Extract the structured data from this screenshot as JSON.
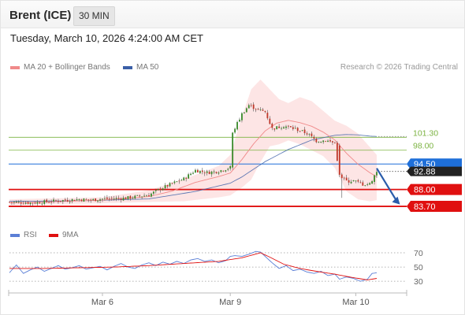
{
  "header": {
    "instrument": "Brent (ICE)",
    "timeframe": "30 MIN"
  },
  "datetime": "Tuesday, March 10, 2026 4:24:00 AM CET",
  "legend": {
    "ma20_bb": "MA 20 + Bollinger Bands",
    "ma50": "MA 50",
    "rsi": "RSI",
    "rsi_ma": "9MA"
  },
  "research": "Research © 2026 Trading Central",
  "colors": {
    "ma20": "#f08a8a",
    "ma50": "#3b5fa7",
    "bollinger_fill": "#fde0e0",
    "candle_up": "#3a8a2a",
    "candle_down": "#c0392b",
    "resistance": "#7cb342",
    "support": "#e01010",
    "current_price": "#1e6fd9",
    "rsi_line": "#5b7fd6",
    "rsi_ma": "#e01010",
    "arrow": "#2a5caa"
  },
  "chart_data": {
    "type": "candlestick",
    "y_range": [
      79.5,
      117
    ],
    "x_axis_labels": [
      {
        "label": "Mar 6",
        "index": 40
      },
      {
        "label": "Mar 9",
        "index": 95
      },
      {
        "label": "Mar 10",
        "index": 149
      }
    ],
    "close_anchors": [
      [
        0,
        84.8
      ],
      [
        10,
        84.6
      ],
      [
        20,
        85.1
      ],
      [
        30,
        85.5
      ],
      [
        35,
        85.3
      ],
      [
        40,
        85.6
      ],
      [
        50,
        85.8
      ],
      [
        60,
        86.6
      ],
      [
        65,
        88.2
      ],
      [
        70,
        89.5
      ],
      [
        75,
        90.7
      ],
      [
        80,
        92.9
      ],
      [
        85,
        92.3
      ],
      [
        88,
        92.5
      ],
      [
        90,
        92.7
      ],
      [
        95,
        93.6
      ],
      [
        96,
        102.5
      ],
      [
        100,
        107.2
      ],
      [
        103,
        109.5
      ],
      [
        107,
        108.3
      ],
      [
        110,
        107.8
      ],
      [
        113,
        103.5
      ],
      [
        118,
        104.2
      ],
      [
        123,
        103.4
      ],
      [
        128,
        102.3
      ],
      [
        132,
        100.4
      ],
      [
        136,
        100.5
      ],
      [
        140,
        99.8
      ],
      [
        142,
        91.5
      ],
      [
        145,
        90.1
      ],
      [
        148,
        90.2
      ],
      [
        152,
        89.3
      ],
      [
        155,
        89.4
      ],
      [
        158,
        92.6
      ]
    ],
    "ma20_anchors": [
      [
        0,
        84.6
      ],
      [
        20,
        84.9
      ],
      [
        40,
        85.3
      ],
      [
        60,
        86.2
      ],
      [
        70,
        87.6
      ],
      [
        80,
        89.8
      ],
      [
        90,
        91.3
      ],
      [
        95,
        92.2
      ],
      [
        100,
        95.6
      ],
      [
        105,
        99.6
      ],
      [
        110,
        102.9
      ],
      [
        115,
        104.9
      ],
      [
        120,
        105.6
      ],
      [
        125,
        105.0
      ],
      [
        130,
        104.1
      ],
      [
        135,
        102.6
      ],
      [
        140,
        100.6
      ],
      [
        145,
        97.2
      ],
      [
        150,
        94.4
      ],
      [
        155,
        92.3
      ],
      [
        158,
        91.2
      ]
    ],
    "ma50_anchors": [
      [
        0,
        85.0
      ],
      [
        30,
        85.1
      ],
      [
        60,
        85.6
      ],
      [
        80,
        87.5
      ],
      [
        95,
        89.6
      ],
      [
        100,
        91.2
      ],
      [
        110,
        95.1
      ],
      [
        120,
        98.2
      ],
      [
        130,
        100.6
      ],
      [
        140,
        101.8
      ],
      [
        145,
        102.0
      ],
      [
        150,
        101.9
      ],
      [
        155,
        101.6
      ],
      [
        158,
        101.5
      ]
    ],
    "bb_upper_anchors": [
      [
        0,
        85.5
      ],
      [
        40,
        86.0
      ],
      [
        60,
        87.8
      ],
      [
        75,
        90.6
      ],
      [
        90,
        94.0
      ],
      [
        95,
        96.8
      ],
      [
        100,
        106.5
      ],
      [
        104,
        113.5
      ],
      [
        108,
        116.0
      ],
      [
        112,
        113.5
      ],
      [
        116,
        111.0
      ],
      [
        120,
        110.0
      ],
      [
        125,
        111.5
      ],
      [
        130,
        110.5
      ],
      [
        135,
        108.0
      ],
      [
        140,
        105.5
      ],
      [
        145,
        104.2
      ],
      [
        150,
        102.2
      ],
      [
        155,
        98.8
      ],
      [
        158,
        96.8
      ]
    ],
    "bb_lower_anchors": [
      [
        0,
        84.0
      ],
      [
        40,
        84.5
      ],
      [
        60,
        84.8
      ],
      [
        75,
        85.0
      ],
      [
        90,
        86.0
      ],
      [
        95,
        86.5
      ],
      [
        100,
        88.5
      ],
      [
        104,
        90.5
      ],
      [
        108,
        95.0
      ],
      [
        112,
        99.0
      ],
      [
        116,
        99.5
      ],
      [
        120,
        100.5
      ],
      [
        125,
        99.5
      ],
      [
        130,
        98.0
      ],
      [
        135,
        96.5
      ],
      [
        140,
        93.5
      ],
      [
        145,
        87.5
      ],
      [
        150,
        85.5
      ],
      [
        155,
        85.0
      ],
      [
        158,
        85.3
      ]
    ],
    "candle_count": 159,
    "levels": [
      {
        "value": 101.3,
        "label": "101.30",
        "type": "resistance"
      },
      {
        "value": 98.0,
        "label": "98.00",
        "type": "resistance"
      },
      {
        "value": 94.5,
        "label": "94.50",
        "type": "pivot"
      },
      {
        "value": 88.0,
        "label": "88.00",
        "type": "support"
      },
      {
        "value": 83.7,
        "label": "83.70",
        "type": "support"
      }
    ],
    "current_price_label": "92.88",
    "forecast_arrow": {
      "from_index": 158,
      "from_value": 93.4,
      "to_index": 168,
      "to_value": 84.2
    },
    "rsi": {
      "y_range": [
        18,
        80
      ],
      "ticks": [
        {
          "value": 70,
          "label": "70"
        },
        {
          "value": 50,
          "label": "50"
        },
        {
          "value": 30,
          "label": "30"
        }
      ],
      "rsi_anchors": [
        [
          0,
          42
        ],
        [
          3,
          53
        ],
        [
          6,
          41
        ],
        [
          9,
          46
        ],
        [
          12,
          50
        ],
        [
          15,
          44
        ],
        [
          18,
          48
        ],
        [
          21,
          52
        ],
        [
          24,
          47
        ],
        [
          27,
          49
        ],
        [
          30,
          52
        ],
        [
          33,
          47
        ],
        [
          36,
          49
        ],
        [
          39,
          51
        ],
        [
          42,
          46
        ],
        [
          45,
          51
        ],
        [
          48,
          55
        ],
        [
          51,
          50
        ],
        [
          54,
          48
        ],
        [
          57,
          53
        ],
        [
          60,
          56
        ],
        [
          63,
          52
        ],
        [
          66,
          57
        ],
        [
          69,
          54
        ],
        [
          72,
          58
        ],
        [
          75,
          55
        ],
        [
          78,
          60
        ],
        [
          81,
          62
        ],
        [
          84,
          58
        ],
        [
          87,
          60
        ],
        [
          90,
          56
        ],
        [
          93,
          59
        ],
        [
          95,
          65
        ],
        [
          97,
          66
        ],
        [
          100,
          65
        ],
        [
          103,
          68
        ],
        [
          106,
          72
        ],
        [
          108,
          71
        ],
        [
          110,
          65
        ],
        [
          113,
          56
        ],
        [
          116,
          48
        ],
        [
          119,
          52
        ],
        [
          122,
          45
        ],
        [
          125,
          47
        ],
        [
          128,
          43
        ],
        [
          131,
          41
        ],
        [
          134,
          44
        ],
        [
          137,
          38
        ],
        [
          140,
          40
        ],
        [
          142,
          33
        ],
        [
          145,
          36
        ],
        [
          148,
          34
        ],
        [
          151,
          30
        ],
        [
          154,
          33
        ],
        [
          156,
          41
        ],
        [
          158,
          42
        ]
      ],
      "ma_anchors": [
        [
          0,
          48
        ],
        [
          15,
          48
        ],
        [
          30,
          49
        ],
        [
          45,
          50
        ],
        [
          60,
          52
        ],
        [
          75,
          55
        ],
        [
          90,
          58
        ],
        [
          100,
          63
        ],
        [
          108,
          70
        ],
        [
          112,
          64
        ],
        [
          118,
          54
        ],
        [
          125,
          48
        ],
        [
          132,
          44
        ],
        [
          140,
          40
        ],
        [
          148,
          35
        ],
        [
          154,
          32
        ],
        [
          158,
          34
        ]
      ]
    }
  }
}
